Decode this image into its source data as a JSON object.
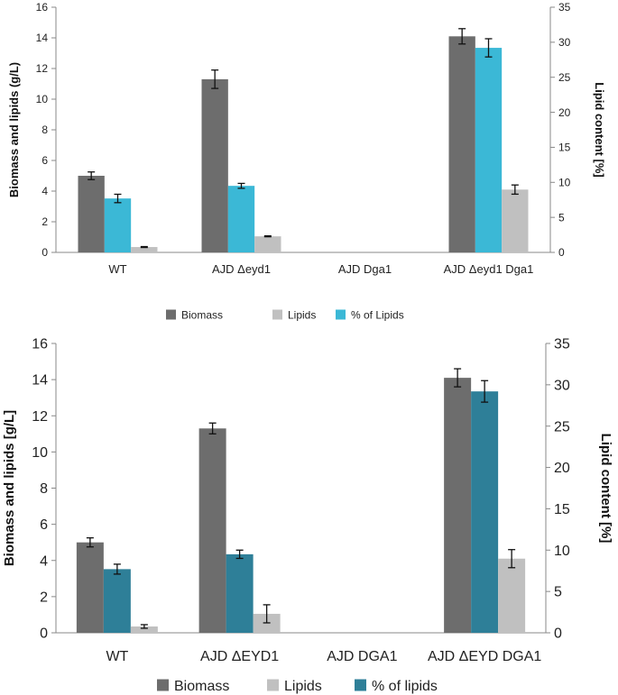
{
  "chart_data": [
    {
      "type": "bar",
      "categories": [
        "WT",
        "AJD Δeyd1",
        "AJD Dga1",
        "AJD Δeyd1 Dga1"
      ],
      "ylabel": "Biomass and lipids (g/L)",
      "y2label": "Lipid content  [%]",
      "ylim": [
        0,
        16
      ],
      "y2lim": [
        0,
        35
      ],
      "y_ticks": [
        "0",
        "2",
        "4",
        "6",
        "8",
        "10",
        "12",
        "14",
        "16"
      ],
      "y2_ticks": [
        "0",
        "5",
        "10",
        "15",
        "20",
        "25",
        "30",
        "35"
      ],
      "legend_position": "bottom",
      "series": [
        {
          "name": "Biomass",
          "axis": "left",
          "color": "#6d6d6d",
          "values": [
            5.0,
            11.3,
            null,
            14.1
          ],
          "errors": [
            0.25,
            0.6,
            null,
            0.5
          ]
        },
        {
          "name": "% of Lipids",
          "axis": "right",
          "color": "#3bb8d6",
          "values": [
            7.7,
            9.5,
            null,
            29.2
          ],
          "errors": [
            0.6,
            0.35,
            null,
            1.3
          ]
        },
        {
          "name": "Lipids",
          "axis": "left",
          "color": "#c0c0c0",
          "values": [
            0.35,
            1.05,
            null,
            4.1
          ],
          "errors": [
            0.03,
            0.03,
            null,
            0.3
          ]
        }
      ],
      "legend": [
        "Biomass",
        "Lipids",
        "% of Lipids"
      ]
    },
    {
      "type": "bar",
      "categories": [
        "WT",
        "AJD ΔEYD1",
        "AJD DGA1",
        "AJD ΔEYD DGA1"
      ],
      "ylabel": "Biomass and lipids [g/L]",
      "y2label": "Lipid content  [%]",
      "ylim": [
        0,
        16
      ],
      "y2lim": [
        0,
        35
      ],
      "y_ticks": [
        "0",
        "2",
        "4",
        "6",
        "8",
        "10",
        "12",
        "14",
        "16"
      ],
      "y2_ticks": [
        "0",
        "5",
        "10",
        "15",
        "20",
        "25",
        "30",
        "35"
      ],
      "legend_position": "bottom",
      "series": [
        {
          "name": "Biomass",
          "axis": "left",
          "color": "#6d6d6d",
          "values": [
            5.0,
            11.3,
            null,
            14.1
          ],
          "errors": [
            0.25,
            0.3,
            null,
            0.5
          ]
        },
        {
          "name": "% of lipids",
          "axis": "right",
          "color": "#2e7f98",
          "values": [
            7.7,
            9.5,
            null,
            29.2
          ],
          "errors": [
            0.6,
            0.5,
            null,
            1.3
          ]
        },
        {
          "name": "Lipids",
          "axis": "left",
          "color": "#c0c0c0",
          "values": [
            0.35,
            1.05,
            null,
            4.1
          ],
          "errors": [
            0.1,
            0.5,
            null,
            0.5
          ]
        }
      ],
      "legend": [
        "Biomass",
        "Lipids",
        "% of lipids"
      ]
    }
  ]
}
